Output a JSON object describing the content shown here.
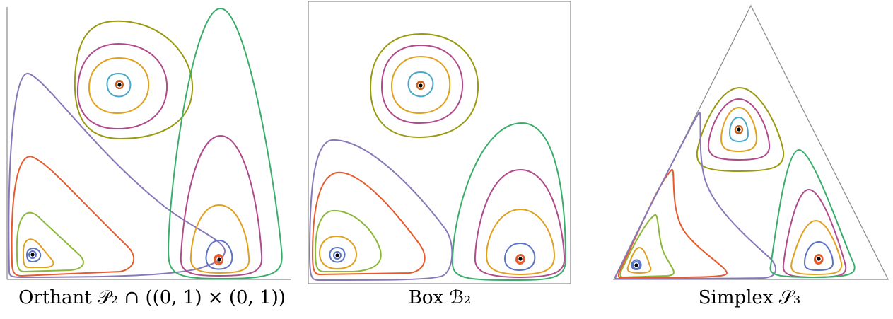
{
  "panels": [
    {
      "id": "orthant",
      "caption": "Orthant 𝒫₂ ∩ ((0, 1) × (0, 1))"
    },
    {
      "id": "box",
      "caption": "Box ℬ₂"
    },
    {
      "id": "simplex",
      "caption": "Simplex 𝒮₃"
    }
  ],
  "colors": {
    "blue": "#5b74c4",
    "orange": "#e0a020",
    "green": "#8cb83a",
    "red": "#e65a2c",
    "purple": "#8878b8",
    "olive": "#9a9a10",
    "magenta": "#b04a8a",
    "teal": "#3aad6a",
    "cyan": "#4ba6c8",
    "brown": "#c86020",
    "frame": "#8a8a8a"
  }
}
